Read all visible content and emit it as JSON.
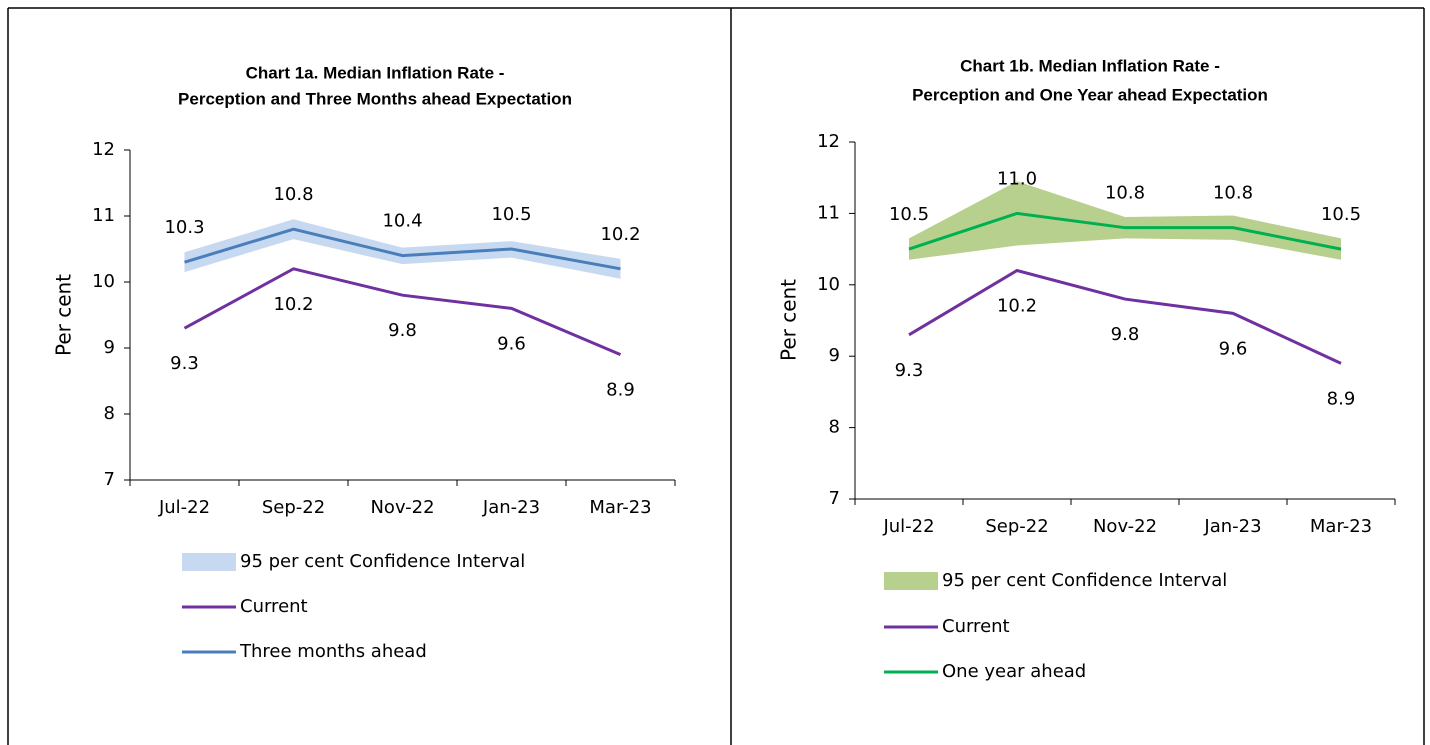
{
  "chart_data": [
    {
      "type": "line",
      "title": [
        "Chart 1a. Median Inflation Rate -",
        "Perception and Three Months ahead Expectation"
      ],
      "ylabel": "Per cent",
      "categories": [
        "Jul-22",
        "Sep-22",
        "Nov-22",
        "Jan-23",
        "Mar-23"
      ],
      "ylim": [
        7,
        12
      ],
      "yticks": [
        7,
        8,
        9,
        10,
        11,
        12
      ],
      "band": {
        "name": "95 per cent Confidence Interval",
        "color": "#c6d9f1",
        "lower": [
          10.15,
          10.65,
          10.27,
          10.37,
          10.05
        ],
        "upper": [
          10.45,
          10.95,
          10.52,
          10.62,
          10.35
        ]
      },
      "series": [
        {
          "name": "Current",
          "color": "#7030a0",
          "values": [
            9.3,
            10.2,
            9.8,
            9.6,
            8.9
          ],
          "value_labels": [
            "9.3",
            "10.2",
            "9.8",
            "9.6",
            "8.9"
          ]
        },
        {
          "name": "Three months ahead",
          "color": "#4a7ebb",
          "values": [
            10.3,
            10.8,
            10.4,
            10.5,
            10.2
          ],
          "value_labels": [
            "10.3",
            "10.8",
            "10.4",
            "10.5",
            "10.2"
          ]
        }
      ]
    },
    {
      "type": "line",
      "title": [
        "Chart 1b. Median Inflation Rate -",
        "Perception and One Year ahead Expectation"
      ],
      "ylabel": "Per cent",
      "categories": [
        "Jul-22",
        "Sep-22",
        "Nov-22",
        "Jan-23",
        "Mar-23"
      ],
      "ylim": [
        7,
        12
      ],
      "yticks": [
        7,
        8,
        9,
        10,
        11,
        12
      ],
      "band": {
        "name": "95 per cent Confidence Interval",
        "color": "#b8d08e",
        "lower": [
          10.35,
          10.55,
          10.65,
          10.63,
          10.35
        ],
        "upper": [
          10.65,
          11.45,
          10.95,
          10.97,
          10.65
        ]
      },
      "series": [
        {
          "name": "Current",
          "color": "#7030a0",
          "values": [
            9.3,
            10.2,
            9.8,
            9.6,
            8.9
          ],
          "value_labels": [
            "9.3",
            "10.2",
            "9.8",
            "9.6",
            "8.9"
          ]
        },
        {
          "name": "One year ahead",
          "color": "#00b050",
          "values": [
            10.5,
            11.0,
            10.8,
            10.8,
            10.5
          ],
          "value_labels": [
            "10.5",
            "11.0",
            "10.8",
            "10.8",
            "10.5"
          ]
        }
      ]
    }
  ]
}
